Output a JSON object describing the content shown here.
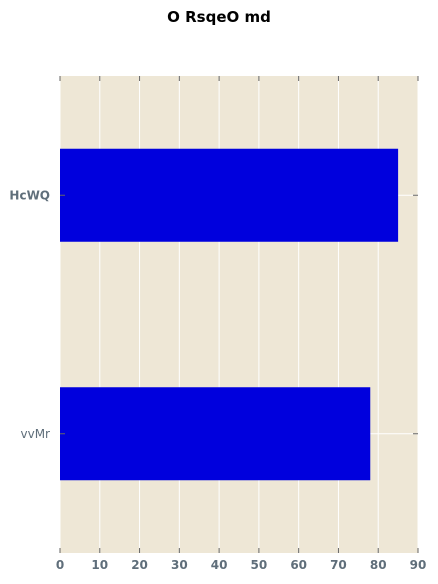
{
  "chart_data": {
    "type": "bar",
    "orientation": "horizontal",
    "title": "O RsqeO md",
    "categories": [
      "HcWQ",
      "vvMr"
    ],
    "values": [
      85,
      78
    ],
    "xlim": [
      0,
      90
    ],
    "xticks": [
      0,
      10,
      20,
      30,
      40,
      50,
      60,
      70,
      80,
      90
    ],
    "xlabel": "",
    "ylabel": "",
    "grid": true,
    "colors": {
      "bar": "#0000dd",
      "plot_background": "#eee7d6",
      "grid": "#ffffff",
      "tick_text": "#5f6e7a"
    }
  }
}
